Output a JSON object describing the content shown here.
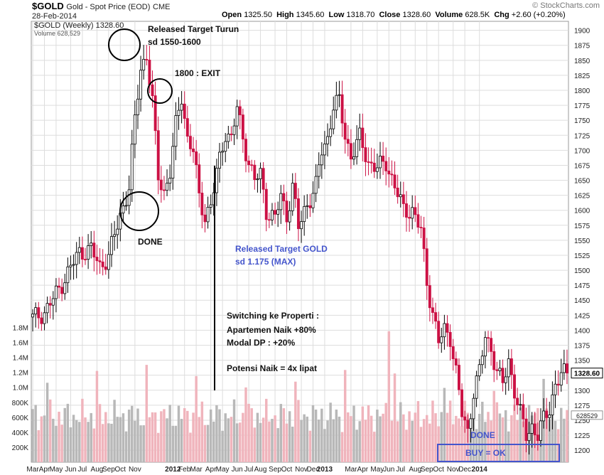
{
  "header": {
    "ticker": "$GOLD",
    "subtitle": "Gold - Spot Price (EOD)",
    "exchange": "CME",
    "date": "28-Feb-2014",
    "credit": "© StockCharts.com",
    "open_label": "Open",
    "open": "1325.50",
    "high_label": "High",
    "high": "1345.60",
    "low_label": "Low",
    "low": "1318.70",
    "close_label": "Close",
    "close": "1328.60",
    "volume_label": "Volume",
    "volume": "628.5K",
    "chg_label": "Chg",
    "chg": "+2.60 (+0.20%)"
  },
  "legend": {
    "price": "$GOLD (Weekly) 1328.60",
    "volume": "Volume 628,529"
  },
  "annotations": {
    "target_turun": [
      "Released Target Turun",
      "sd 1550-1600"
    ],
    "exit": "1800 : EXIT",
    "done1": "DONE",
    "released_gold": [
      "Released Target GOLD",
      "sd 1.175 (MAX)"
    ],
    "properti": [
      "Switching ke Properti :",
      "Apartemen Naik +80%",
      "Modal DP : +20%",
      "",
      "Potensi Naik = 4x lipat"
    ],
    "done2": "DONE",
    "buy": "BUY = OK"
  },
  "colors": {
    "up": "#ffffff",
    "down": "#cc1144",
    "vol_up": "#b8b8b8",
    "vol_down": "#f0b4bc",
    "grid": "#dddddd",
    "blue": "#4455cc"
  },
  "chart_data": {
    "type": "candlestick",
    "title": "$GOLD Gold - Spot Price (EOD) CME",
    "period": "Weekly",
    "price_axis": {
      "ticks": [
        1200,
        1225,
        1250,
        1275,
        1300,
        1325,
        1350,
        1375,
        1400,
        1425,
        1450,
        1475,
        1500,
        1525,
        1550,
        1575,
        1600,
        1625,
        1650,
        1675,
        1700,
        1725,
        1750,
        1775,
        1800,
        1825,
        1850,
        1875,
        1900
      ],
      "range": [
        1180,
        1915
      ],
      "last_label": "1328.60"
    },
    "volume_axis": {
      "ticks": [
        200000,
        400000,
        600000,
        800000,
        1000000,
        1200000,
        1400000,
        1600000,
        1800000
      ],
      "tick_labels": [
        "200K",
        "400K",
        "600K",
        "800K",
        "1.0M",
        "1.2M",
        "1.4M",
        "1.6M",
        "1.8M"
      ],
      "last_label": "628529"
    },
    "x_labels": [
      "Mar",
      "Apr",
      "May",
      "Jun",
      "Jul",
      "Aug",
      "Sep",
      "Oct",
      "Nov",
      "2012",
      "Feb",
      "Mar",
      "Apr",
      "May",
      "Jun",
      "Jul",
      "Aug",
      "Sep",
      "Oct",
      "Nov",
      "Dec",
      "2013",
      "Mar",
      "Apr",
      "May",
      "Jun",
      "Jul",
      "Aug",
      "Sep",
      "Oct",
      "Nov",
      "Dec",
      "2014"
    ],
    "x_label_weeks": [
      0,
      4,
      8,
      13,
      17,
      22,
      26,
      30,
      35,
      48,
      52,
      56,
      61,
      65,
      70,
      74,
      78,
      83,
      87,
      92,
      96,
      100,
      109,
      113,
      118,
      122,
      126,
      131,
      135,
      139,
      144,
      148,
      153
    ],
    "anchors": [
      [
        0,
        1420
      ],
      [
        4,
        1430
      ],
      [
        8,
        1460
      ],
      [
        13,
        1505
      ],
      [
        16,
        1530
      ],
      [
        20,
        1535
      ],
      [
        23,
        1505
      ],
      [
        26,
        1525
      ],
      [
        30,
        1590
      ],
      [
        33,
        1640
      ],
      [
        35,
        1750
      ],
      [
        37,
        1835
      ],
      [
        39,
        1860
      ],
      [
        41,
        1780
      ],
      [
        43,
        1655
      ],
      [
        45,
        1630
      ],
      [
        47,
        1665
      ],
      [
        49,
        1740
      ],
      [
        51,
        1790
      ],
      [
        53,
        1720
      ],
      [
        55,
        1700
      ],
      [
        57,
        1620
      ],
      [
        59,
        1590
      ],
      [
        61,
        1610
      ],
      [
        63,
        1660
      ],
      [
        66,
        1730
      ],
      [
        68,
        1720
      ],
      [
        70,
        1770
      ],
      [
        72,
        1720
      ],
      [
        74,
        1680
      ],
      [
        76,
        1650
      ],
      [
        78,
        1660
      ],
      [
        80,
        1600
      ],
      [
        83,
        1585
      ],
      [
        85,
        1625
      ],
      [
        87,
        1590
      ],
      [
        89,
        1640
      ],
      [
        91,
        1570
      ],
      [
        93,
        1600
      ],
      [
        95,
        1620
      ],
      [
        97,
        1640
      ],
      [
        99,
        1700
      ],
      [
        101,
        1720
      ],
      [
        103,
        1775
      ],
      [
        105,
        1780
      ],
      [
        107,
        1725
      ],
      [
        109,
        1690
      ],
      [
        112,
        1720
      ],
      [
        115,
        1680
      ],
      [
        118,
        1670
      ],
      [
        121,
        1680
      ],
      [
        124,
        1640
      ],
      [
        127,
        1600
      ],
      [
        130,
        1600
      ],
      [
        133,
        1565
      ],
      [
        135,
        1480
      ],
      [
        137,
        1430
      ],
      [
        139,
        1380
      ],
      [
        141,
        1400
      ],
      [
        143,
        1390
      ],
      [
        145,
        1330
      ],
      [
        147,
        1260
      ],
      [
        149,
        1230
      ],
      [
        151,
        1300
      ],
      [
        153,
        1330
      ],
      [
        155,
        1390
      ],
      [
        157,
        1370
      ],
      [
        159,
        1330
      ],
      [
        161,
        1310
      ],
      [
        163,
        1350
      ],
      [
        165,
        1300
      ],
      [
        167,
        1260
      ],
      [
        169,
        1225
      ],
      [
        171,
        1240
      ],
      [
        173,
        1225
      ],
      [
        175,
        1250
      ],
      [
        177,
        1270
      ],
      [
        179,
        1310
      ],
      [
        181,
        1325
      ],
      [
        183,
        1328.6
      ]
    ],
    "n_weeks": 184
  }
}
